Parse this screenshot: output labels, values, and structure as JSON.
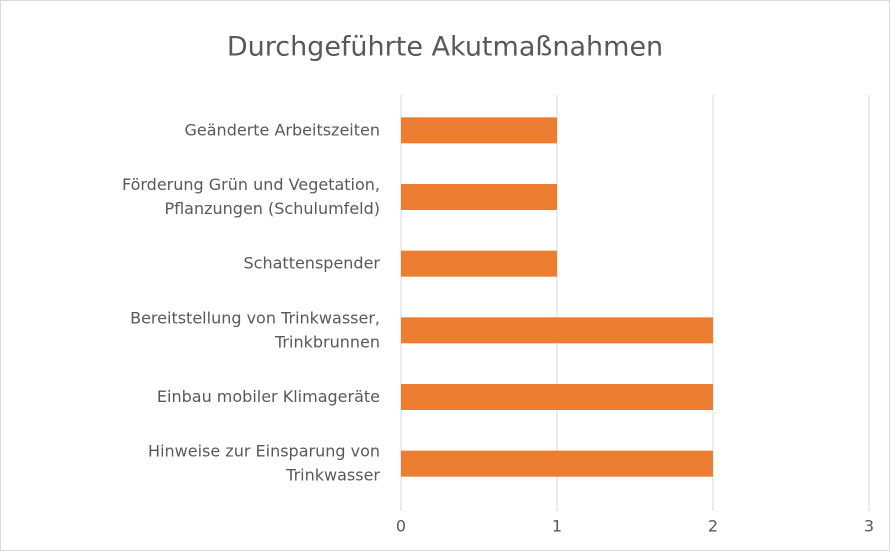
{
  "chart_data": {
    "type": "bar",
    "orientation": "horizontal",
    "title": "Durchgeführte Akutmaßnahmen",
    "categories": [
      "Geänderte Arbeitszeiten",
      "Förderung Grün und Vegetation,\nPflanzungen (Schulumfeld)",
      "Schattenspender",
      "Bereitstellung von Trinkwasser,\nTrinkbrunnen",
      "Einbau mobiler Klimageräte",
      "Hinweise zur Einsparung von\nTrinkwasser"
    ],
    "values": [
      1,
      1,
      1,
      2,
      2,
      2
    ],
    "color": "#ed7d31",
    "xlim": [
      0,
      3
    ],
    "xticks": [
      0,
      1,
      2,
      3
    ],
    "grid": true
  }
}
